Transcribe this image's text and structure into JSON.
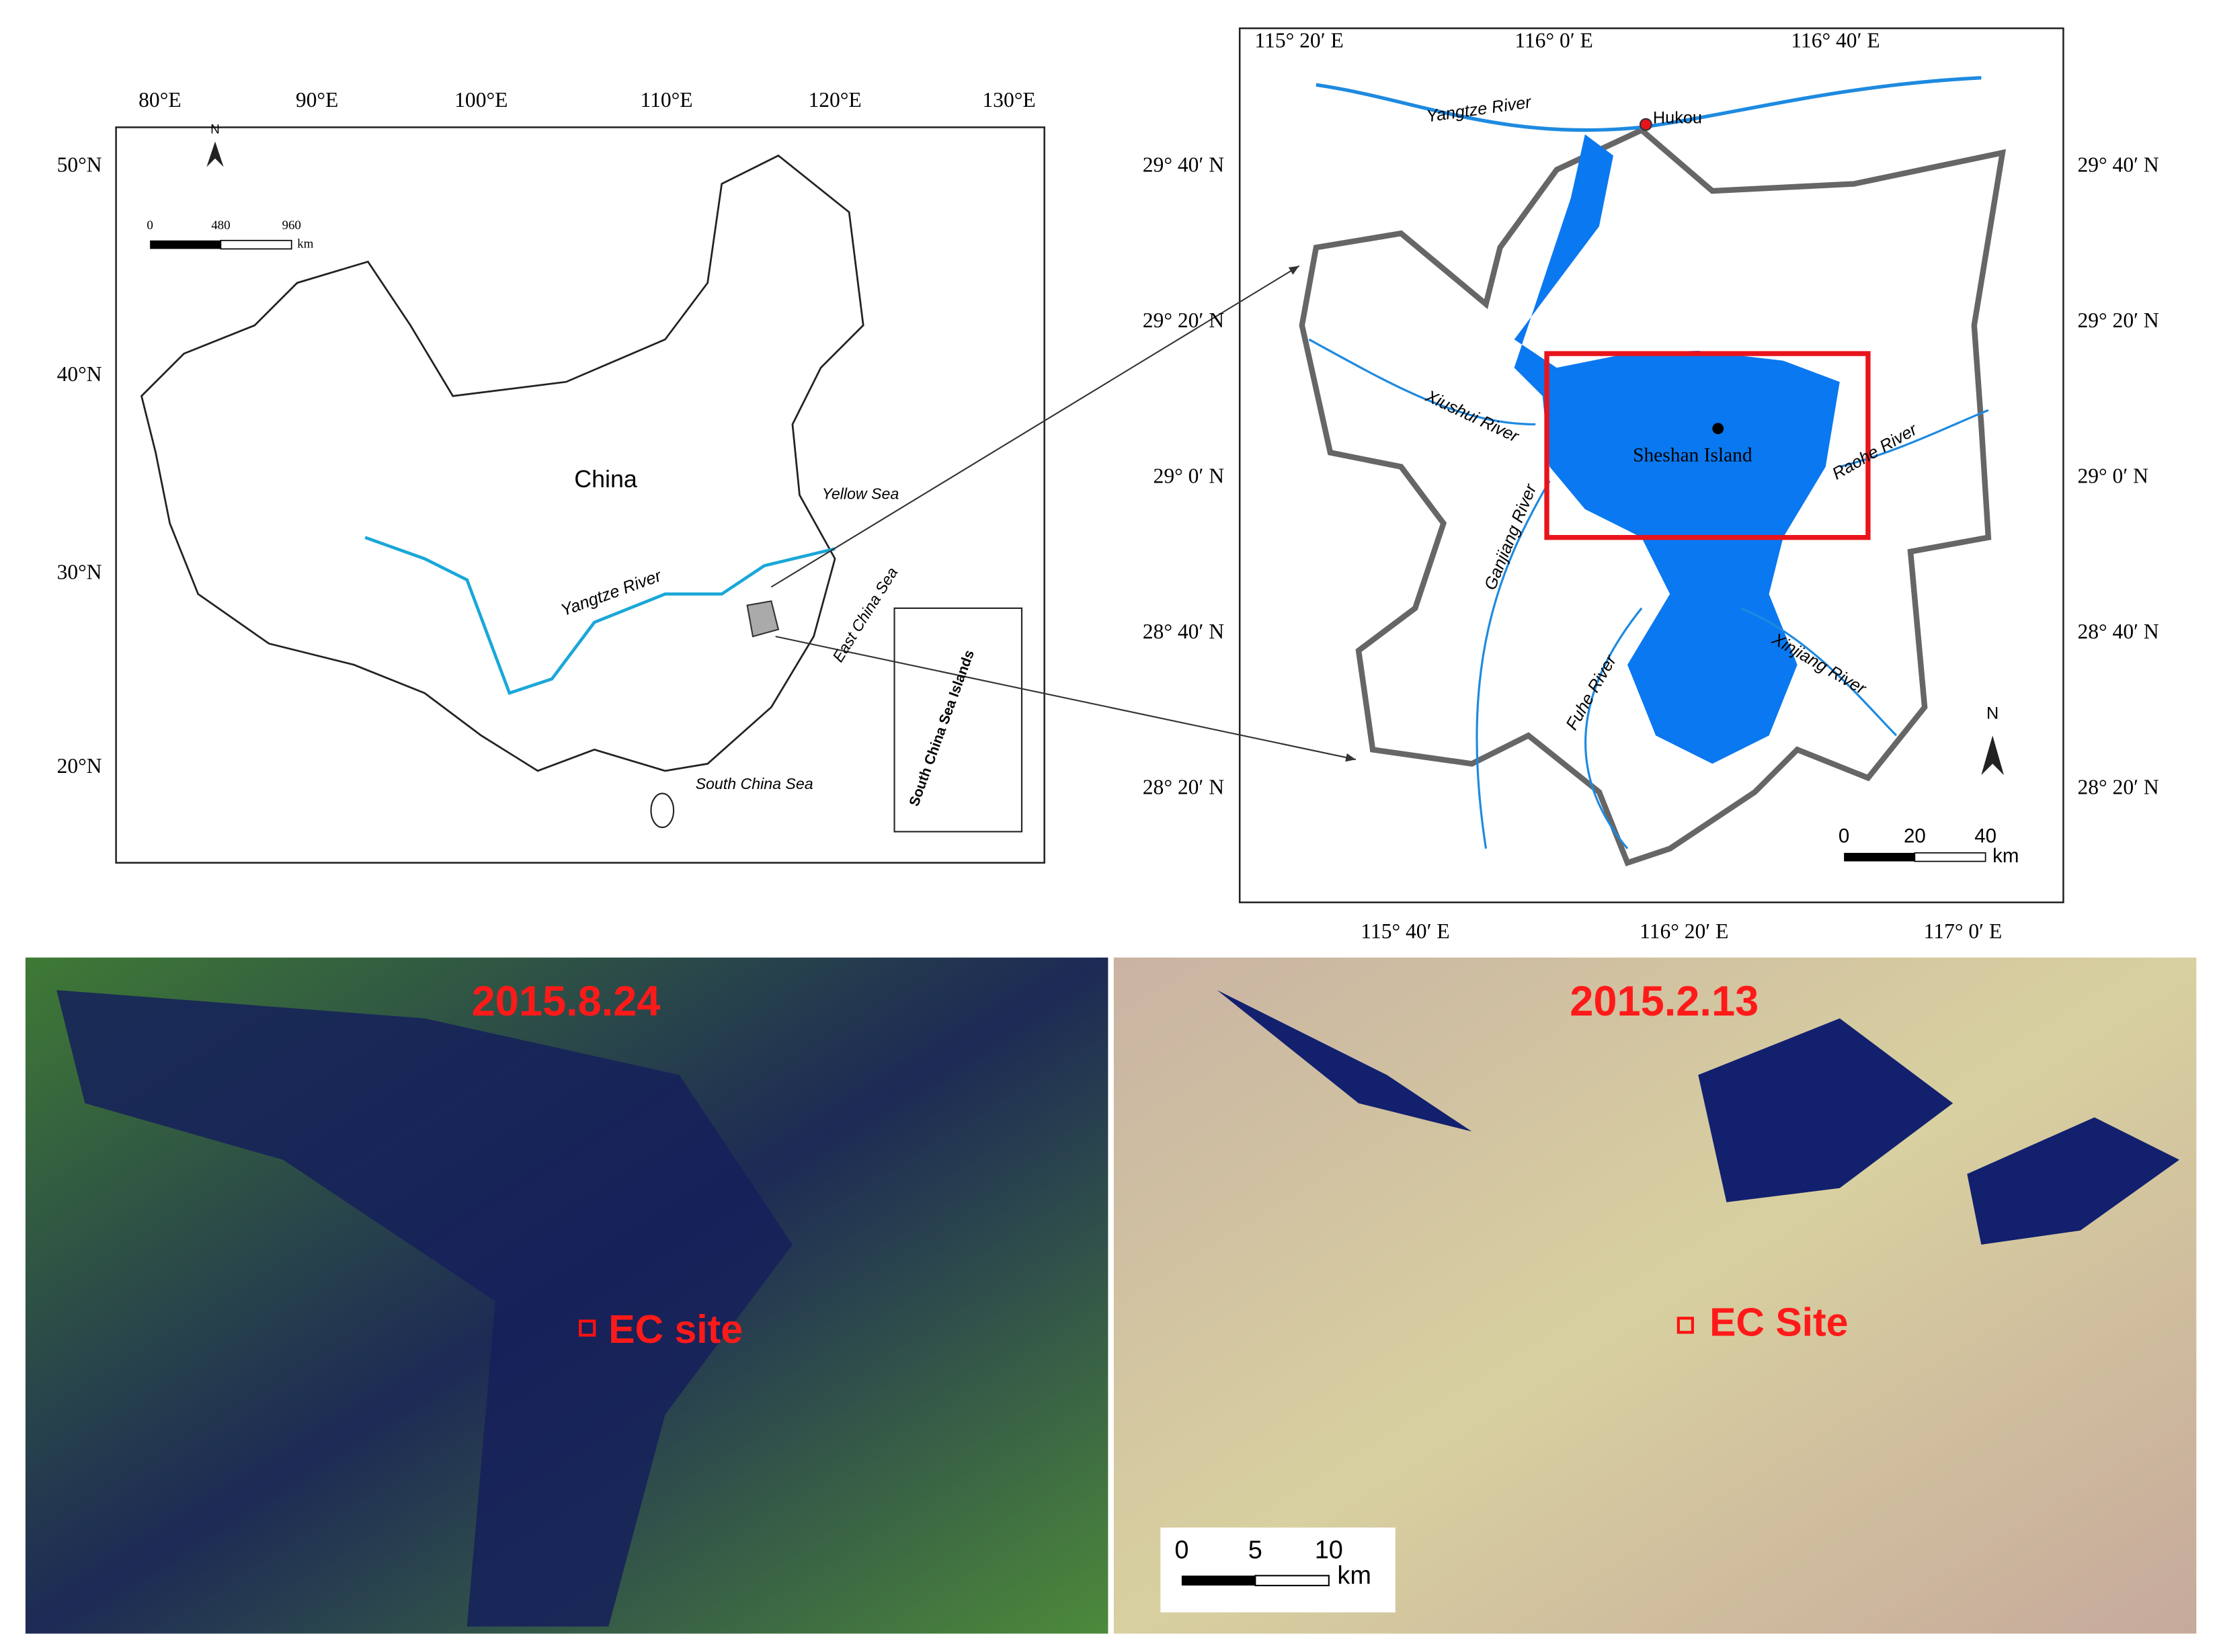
{
  "china_map": {
    "lon_labels": [
      "80°E",
      "90°E",
      "100°E",
      "110°E",
      "120°E",
      "130°E"
    ],
    "lat_labels": [
      "50°N",
      "40°N",
      "30°N",
      "20°N"
    ],
    "north": "N",
    "scale": [
      "0",
      "480",
      "960",
      "km"
    ],
    "country": "China",
    "river": "Yangtze River",
    "seas": [
      "Yellow Sea",
      "East China Sea",
      "South China Sea"
    ],
    "inset": "South China Sea Islands"
  },
  "basin_map": {
    "top_labels": [
      "115° 20′ E",
      "116° 0′ E",
      "116° 40′ E"
    ],
    "bottom_labels": [
      "115° 40′ E",
      "116° 20′ E",
      "117° 0′ E"
    ],
    "left_labels": [
      "29° 40′ N",
      "29° 20′ N",
      "29° 0′ N",
      "28° 40′ N",
      "28° 20′ N"
    ],
    "right_labels": [
      "29° 40′ N",
      "29° 20′ N",
      "29° 0′ N",
      "28° 40′ N",
      "28° 20′ N"
    ],
    "rivers": [
      "Yangtze River",
      "Xiushui River",
      "Raohe River",
      "Ganjiang River",
      "Xinjiang River",
      "Fuhe River"
    ],
    "hukou": "Hukou",
    "island": "Sheshan Island",
    "north": "N",
    "scale": [
      "0",
      "20",
      "40",
      "km"
    ]
  },
  "images": [
    {
      "date": "2015.8.24",
      "site": "EC site"
    },
    {
      "date": "2015.2.13",
      "site": "EC Site",
      "scale": [
        "0",
        "5",
        "10",
        "km"
      ]
    }
  ]
}
